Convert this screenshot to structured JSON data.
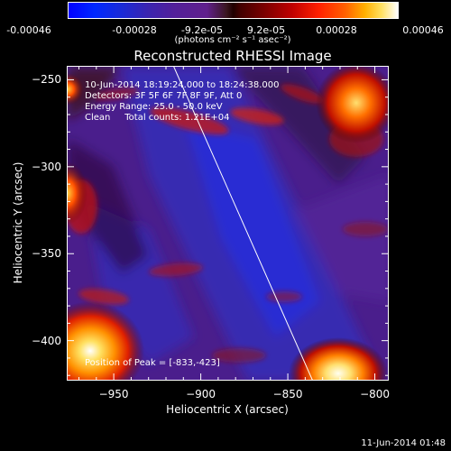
{
  "colorbar": {
    "tick_labels": [
      "-0.00046",
      "-0.00028",
      "-9.2e-05",
      "9.2e-05",
      "0.00028",
      "0.00046"
    ],
    "units": "(photons cm⁻² s⁻¹ asec⁻²)"
  },
  "chart_data": {
    "type": "heatmap",
    "title": "Reconstructed RHESSI Image",
    "xlabel": "Heliocentric X (arcsec)",
    "ylabel": "Heliocentric Y (arcsec)",
    "xlim": [
      -977,
      -792
    ],
    "ylim": [
      -423,
      -242
    ],
    "x_ticks": [
      -950,
      -900,
      -850,
      -800
    ],
    "x_tick_labels": [
      "−950",
      "−900",
      "−850",
      "−800"
    ],
    "y_ticks": [
      -250,
      -300,
      -350,
      -400
    ],
    "y_tick_labels": [
      "−250",
      "−300",
      "−350",
      "−400"
    ],
    "value_range": [
      -0.00046,
      0.00046
    ],
    "limb_line": {
      "x": [
        -916,
        -836
      ],
      "y": [
        -242,
        -423
      ]
    },
    "peak": [
      -833,
      -423
    ],
    "annotations": [
      "10-Jun-2014 18:19:24.000 to 18:24:38.000",
      "Detectors: 3F 5F 6F 7F 8F 9F, Att 0",
      "Energy Range: 25.0 - 50.0 keV",
      "Clean     Total counts: 1.21E+04"
    ],
    "peak_label": "Position of Peak = [-833,-423]"
  },
  "footer": {
    "timestamp": "11-Jun-2014 01:48"
  }
}
